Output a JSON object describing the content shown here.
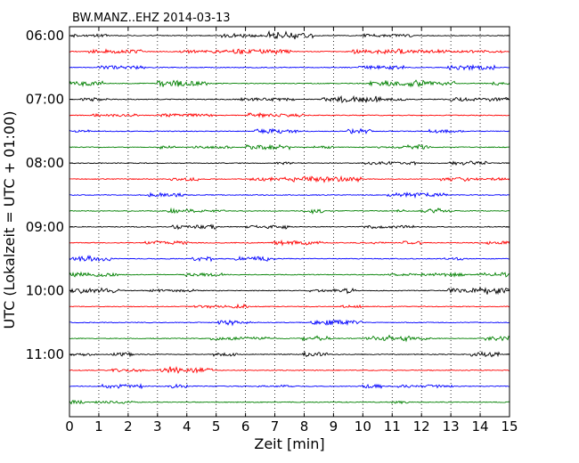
{
  "chart_data": {
    "type": "line",
    "title": "BW.MANZ..EHZ 2014-03-13",
    "xlabel": "Zeit  [min]",
    "ylabel": "UTC (Lokalzeit = UTC + 01:00)",
    "xlim": [
      0,
      15
    ],
    "x_ticks": [
      "0",
      "1",
      "2",
      "3",
      "4",
      "5",
      "6",
      "7",
      "8",
      "9",
      "10",
      "11",
      "12",
      "13",
      "14",
      "15"
    ],
    "y_tick_labels": [
      "06:00",
      "07:00",
      "08:00",
      "09:00",
      "10:00",
      "11:00"
    ],
    "grid": "vertical-dotted",
    "trace_colors": [
      "#000000",
      "#ff0000",
      "#0000ff",
      "#008000"
    ],
    "trace_start_times": [
      "06:00",
      "06:15",
      "06:30",
      "06:45",
      "07:00",
      "07:15",
      "07:30",
      "07:45",
      "08:00",
      "08:15",
      "08:30",
      "08:45",
      "09:00",
      "09:15",
      "09:30",
      "09:45",
      "10:00",
      "10:15",
      "10:30",
      "10:45",
      "11:00",
      "11:15",
      "11:30",
      "11:45"
    ],
    "series": [
      {
        "values": []
      }
    ]
  }
}
